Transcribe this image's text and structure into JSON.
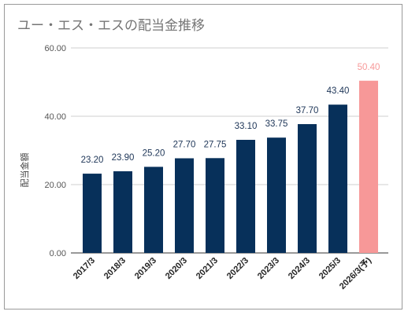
{
  "chart_data": {
    "type": "bar",
    "title": "ユー・エス・エスの配当金推移",
    "ylabel": "配当金額",
    "xlabel": "",
    "ylim": [
      0,
      60
    ],
    "yticks": [
      "0.00",
      "20.00",
      "40.00",
      "60.00"
    ],
    "grid": true,
    "categories": [
      "2017/3",
      "2018/3",
      "2019/3",
      "2020/3",
      "2021/3",
      "2022/3",
      "2023/3",
      "2024/3",
      "2025/3",
      "2026/3(予)"
    ],
    "values": [
      23.2,
      23.9,
      25.2,
      27.7,
      27.75,
      33.1,
      33.75,
      37.7,
      43.4,
      50.4
    ],
    "value_labels": [
      "23.20",
      "23.90",
      "25.20",
      "27.70",
      "27.75",
      "33.10",
      "33.75",
      "37.70",
      "43.40",
      "50.40"
    ],
    "colors": [
      "#07305a",
      "#07305a",
      "#07305a",
      "#07305a",
      "#07305a",
      "#07305a",
      "#07305a",
      "#07305a",
      "#07305a",
      "#f79898"
    ],
    "label_colors": [
      "#1d3557",
      "#1d3557",
      "#1d3557",
      "#1d3557",
      "#1d3557",
      "#1d3557",
      "#1d3557",
      "#1d3557",
      "#1d3557",
      "#f79898"
    ]
  }
}
